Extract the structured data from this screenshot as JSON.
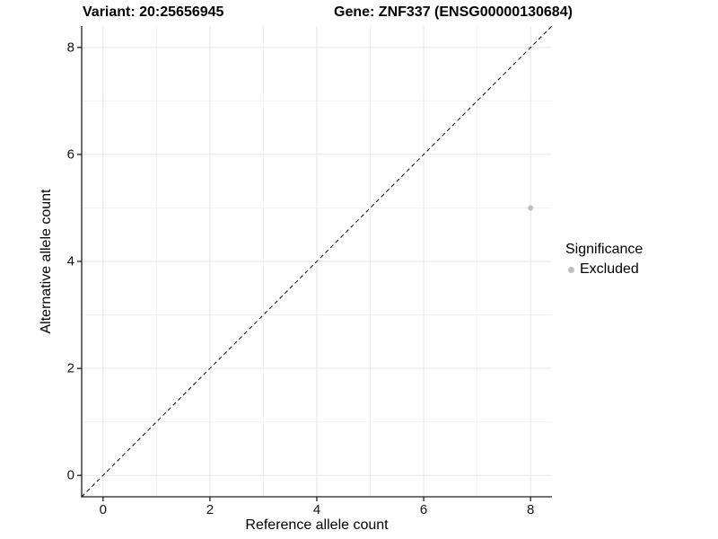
{
  "titles": {
    "variant": "Variant: 20:25656945",
    "gene": "Gene: ZNF337 (ENSG00000130684)"
  },
  "chart_data": {
    "type": "scatter",
    "title_left": "Variant: 20:25656945",
    "title_right": "Gene: ZNF337 (ENSG00000130684)",
    "xlabel": "Reference allele count",
    "ylabel": "Alternative allele count",
    "points": [
      {
        "x": 8,
        "y": 5,
        "series": "Excluded"
      }
    ],
    "xlim": [
      -0.4,
      8.4
    ],
    "ylim": [
      -0.4,
      8.4
    ],
    "x_breaks": [
      0,
      2,
      4,
      6,
      8
    ],
    "y_breaks": [
      0,
      2,
      4,
      6,
      8
    ],
    "x_minor_breaks": [
      1,
      3,
      5,
      7
    ],
    "y_minor_breaks": [
      1,
      3,
      5,
      7
    ],
    "grid": true,
    "reference_line": {
      "kind": "identity",
      "style": "dashed",
      "color": "#000000"
    },
    "legend": {
      "title": "Significance",
      "position": "right",
      "items": [
        {
          "label": "Excluded",
          "color": "#bebebe"
        }
      ]
    },
    "colors": {
      "point": "#bebebe",
      "grid_major": "#e6e6e6",
      "grid_minor": "#f2f2f2",
      "axis": "#1f1f1f",
      "tick_text": "#111111",
      "title_text": "#000000"
    }
  }
}
